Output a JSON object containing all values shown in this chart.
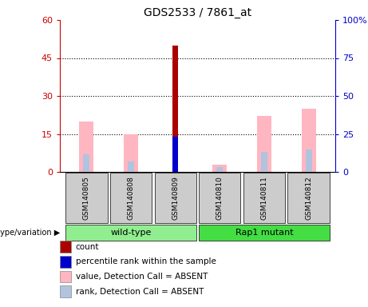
{
  "title": "GDS2533 / 7861_at",
  "samples": [
    "GSM140805",
    "GSM140808",
    "GSM140809",
    "GSM140810",
    "GSM140811",
    "GSM140812"
  ],
  "left_ylim": [
    0,
    60
  ],
  "right_ylim": [
    0,
    100
  ],
  "left_yticks": [
    0,
    15,
    30,
    45,
    60
  ],
  "right_yticks": [
    0,
    25,
    50,
    75,
    100
  ],
  "left_yticklabels": [
    "0",
    "15",
    "30",
    "45",
    "60"
  ],
  "right_yticklabels": [
    "0",
    "25",
    "50",
    "75",
    "100%"
  ],
  "count_bars": [
    0,
    0,
    50,
    0,
    0,
    0
  ],
  "count_color": "#AA0000",
  "percentile_bars": [
    0,
    0,
    14,
    0,
    0,
    0
  ],
  "percentile_color": "#0000CC",
  "value_absent_bars": [
    20,
    15,
    0,
    3,
    22,
    25
  ],
  "value_absent_color": "#FFB6C1",
  "rank_absent_bars": [
    7,
    4,
    0,
    2,
    8,
    9
  ],
  "rank_absent_color": "#B0C4DE",
  "left_axis_color": "#CC0000",
  "right_axis_color": "#0000CC",
  "group_list": [
    {
      "name": "wild-type",
      "start": 0,
      "end": 2,
      "color": "#90EE90"
    },
    {
      "name": "Rap1 mutant",
      "start": 3,
      "end": 5,
      "color": "#44DD44"
    }
  ],
  "legend_items": [
    {
      "label": "count",
      "color": "#AA0000"
    },
    {
      "label": "percentile rank within the sample",
      "color": "#0000CC"
    },
    {
      "label": "value, Detection Call = ABSENT",
      "color": "#FFB6C1"
    },
    {
      "label": "rank, Detection Call = ABSENT",
      "color": "#B0C4DE"
    }
  ],
  "bg_color": "#FFFFFF"
}
